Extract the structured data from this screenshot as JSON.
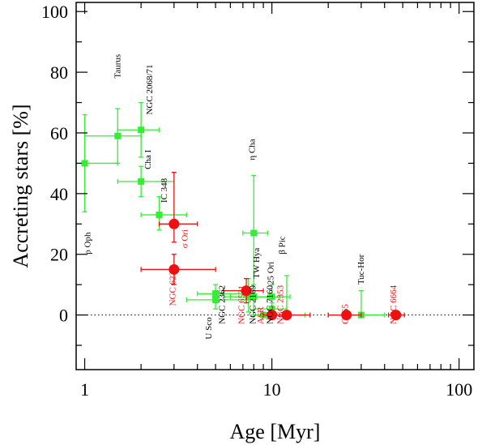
{
  "chart_data": {
    "type": "scatter",
    "title": "",
    "xlabel": "Age [Myr]",
    "ylabel": "Accreting stars [%]",
    "xscale": "log",
    "xlim": [
      0.9,
      120
    ],
    "ylim": [
      -18,
      103
    ],
    "xticks": [
      {
        "value": 1,
        "label": "1"
      },
      {
        "value": 10,
        "label": "10"
      },
      {
        "value": 100,
        "label": "100"
      }
    ],
    "yticks": [
      {
        "value": 0,
        "label": "0"
      },
      {
        "value": 20,
        "label": "20"
      },
      {
        "value": 40,
        "label": "40"
      },
      {
        "value": 60,
        "label": "60"
      },
      {
        "value": 80,
        "label": "80"
      },
      {
        "value": 100,
        "label": "100"
      }
    ],
    "reference_line": {
      "y": 0,
      "style": "dotted"
    },
    "colors": {
      "green_series": "#33ee33",
      "red_series": "#ee1111",
      "axis": "#000000"
    },
    "series": [
      {
        "marker": "square",
        "color": "#33ee33",
        "points": [
          {
            "x": 1.0,
            "y": 50,
            "xerr": [
              0.9,
              1.5
            ],
            "yerr": [
              34,
              66
            ]
          },
          {
            "x": 1.5,
            "y": 59,
            "xerr": [
              1.0,
              2.0
            ],
            "yerr": [
              50,
              68
            ]
          },
          {
            "x": 2.0,
            "y": 61,
            "xerr": [
              1.5,
              2.5
            ],
            "yerr": [
              52,
              70
            ]
          },
          {
            "x": 2.0,
            "y": 44,
            "xerr": [
              1.5,
              3.0
            ],
            "yerr": [
              39,
              49
            ]
          },
          {
            "x": 2.5,
            "y": 33,
            "xerr": [
              2.0,
              3.5
            ],
            "yerr": [
              28,
              39
            ]
          },
          {
            "x": 5.0,
            "y": 7,
            "xerr": [
              4.0,
              8.0
            ],
            "yerr": [
              4,
              10
            ]
          },
          {
            "x": 5.0,
            "y": 5,
            "xerr": [
              3.5,
              7.5
            ],
            "yerr": [
              2,
              8
            ]
          },
          {
            "x": 7.5,
            "y": 6,
            "xerr": [
              6.0,
              9.5
            ],
            "yerr": [
              1,
              12
            ]
          },
          {
            "x": 8.0,
            "y": 27,
            "xerr": [
              7.0,
              9.5
            ],
            "yerr": [
              8,
              46
            ]
          },
          {
            "x": 8.0,
            "y": 6,
            "xerr": [
              5.5,
              11.0
            ],
            "yerr": [
              0,
              10
            ]
          },
          {
            "x": 9.0,
            "y": 0,
            "xerr": [
              8.0,
              10.5
            ],
            "yerr": [
              0,
              0
            ]
          },
          {
            "x": 10.0,
            "y": 0,
            "xerr": [
              8.0,
              12.0
            ],
            "yerr": [
              0,
              0
            ]
          },
          {
            "x": 10.0,
            "y": 2,
            "xerr": [
              8.0,
              12.0
            ],
            "yerr": [
              0,
              4
            ]
          },
          {
            "x": 10.0,
            "y": 6,
            "xerr": [
              7.5,
              12.5
            ],
            "yerr": [
              2,
              10
            ]
          },
          {
            "x": 12.0,
            "y": 0,
            "xerr": [
              8.0,
              15.0
            ],
            "yerr": [
              0,
              13
            ]
          },
          {
            "x": 30.0,
            "y": 0,
            "xerr": [
              20.0,
              40.0
            ],
            "yerr": [
              0,
              8
            ]
          }
        ]
      },
      {
        "marker": "circle",
        "color": "#ee1111",
        "points": [
          {
            "x": 3.0,
            "y": 30,
            "xerr": [
              2.5,
              4.0
            ],
            "yerr": [
              24,
              47
            ]
          },
          {
            "x": 3.0,
            "y": 15,
            "xerr": [
              2.0,
              5.0
            ],
            "yerr": [
              10,
              20
            ]
          },
          {
            "x": 7.3,
            "y": 8,
            "xerr": [
              5.5,
              9.0
            ],
            "yerr": [
              4,
              12
            ]
          },
          {
            "x": 10.0,
            "y": 0,
            "xerr": [
              9.0,
              11.0
            ],
            "yerr": [
              0,
              0
            ]
          },
          {
            "x": 12.0,
            "y": 0,
            "xerr": [
              10.0,
              16.0
            ],
            "yerr": [
              0,
              0
            ]
          },
          {
            "x": 25.0,
            "y": 0,
            "xerr": [
              20.0,
              30.0
            ],
            "yerr": [
              0,
              0
            ]
          },
          {
            "x": 46.0,
            "y": 0,
            "xerr": [
              42.0,
              51.0
            ],
            "yerr": [
              0,
              0
            ]
          }
        ]
      }
    ],
    "annotations": [
      {
        "text": "ρ Oph",
        "x": 1.07,
        "y": 20,
        "rotate": -90,
        "color": "#000000"
      },
      {
        "text": "Taurus",
        "x": 1.55,
        "y": 78,
        "rotate": -90,
        "color": "#000000"
      },
      {
        "text": "NGC 2068/71",
        "x": 2.3,
        "y": 66,
        "rotate": -90,
        "color": "#000000"
      },
      {
        "text": "Cha I",
        "x": 2.25,
        "y": 48,
        "rotate": -90,
        "color": "#000000"
      },
      {
        "text": "IC 348",
        "x": 2.75,
        "y": 37,
        "rotate": -90,
        "color": "#000000"
      },
      {
        "text": "σ Ori",
        "x": 3.55,
        "y": 22,
        "rotate": -90,
        "color": "#ee1111"
      },
      {
        "text": "NGC 6231",
        "x": 3.05,
        "y": 3,
        "rotate": -90,
        "color": "#ee1111"
      },
      {
        "text": "η Cha",
        "x": 8.1,
        "y": 51,
        "rotate": -90,
        "color": "#000000"
      },
      {
        "text": "TW Hya",
        "x": 8.55,
        "y": 12,
        "rotate": -90,
        "color": "#000000"
      },
      {
        "text": "25 Ori",
        "x": 10.2,
        "y": 10,
        "rotate": -90,
        "color": "#000000"
      },
      {
        "text": "β Pic",
        "x": 11.7,
        "y": 20,
        "rotate": -90,
        "color": "#000000"
      },
      {
        "text": "Tuc-Hor",
        "x": 31.0,
        "y": 10,
        "rotate": -90,
        "color": "#000000"
      },
      {
        "text": "U Sco",
        "x": 4.75,
        "y": -8,
        "rotate": -90,
        "color": "#000000"
      },
      {
        "text": "NGC 2362",
        "x": 5.6,
        "y": -3,
        "rotate": -90,
        "color": "#000000"
      },
      {
        "text": "NGC 6531",
        "x": 7.1,
        "y": -3,
        "rotate": -90,
        "color": "#ee1111"
      },
      {
        "text": "NGC 2169",
        "x": 8.2,
        "y": -3,
        "rotate": -90,
        "color": "#000000"
      },
      {
        "text": "ASR",
        "x": 9.0,
        "y": -3,
        "rotate": -90,
        "color": "#ee1111"
      },
      {
        "text": "NGC 7160",
        "x": 10.1,
        "y": -3,
        "rotate": -90,
        "color": "#000000"
      },
      {
        "text": "NGC 2353",
        "x": 11.5,
        "y": -3,
        "rotate": -90,
        "color": "#ee1111"
      },
      {
        "text": "Cr 65",
        "x": 25.5,
        "y": -3,
        "rotate": -90,
        "color": "#ee1111"
      },
      {
        "text": "NGC 6664",
        "x": 46.0,
        "y": -3,
        "rotate": -90,
        "color": "#ee1111"
      }
    ]
  }
}
